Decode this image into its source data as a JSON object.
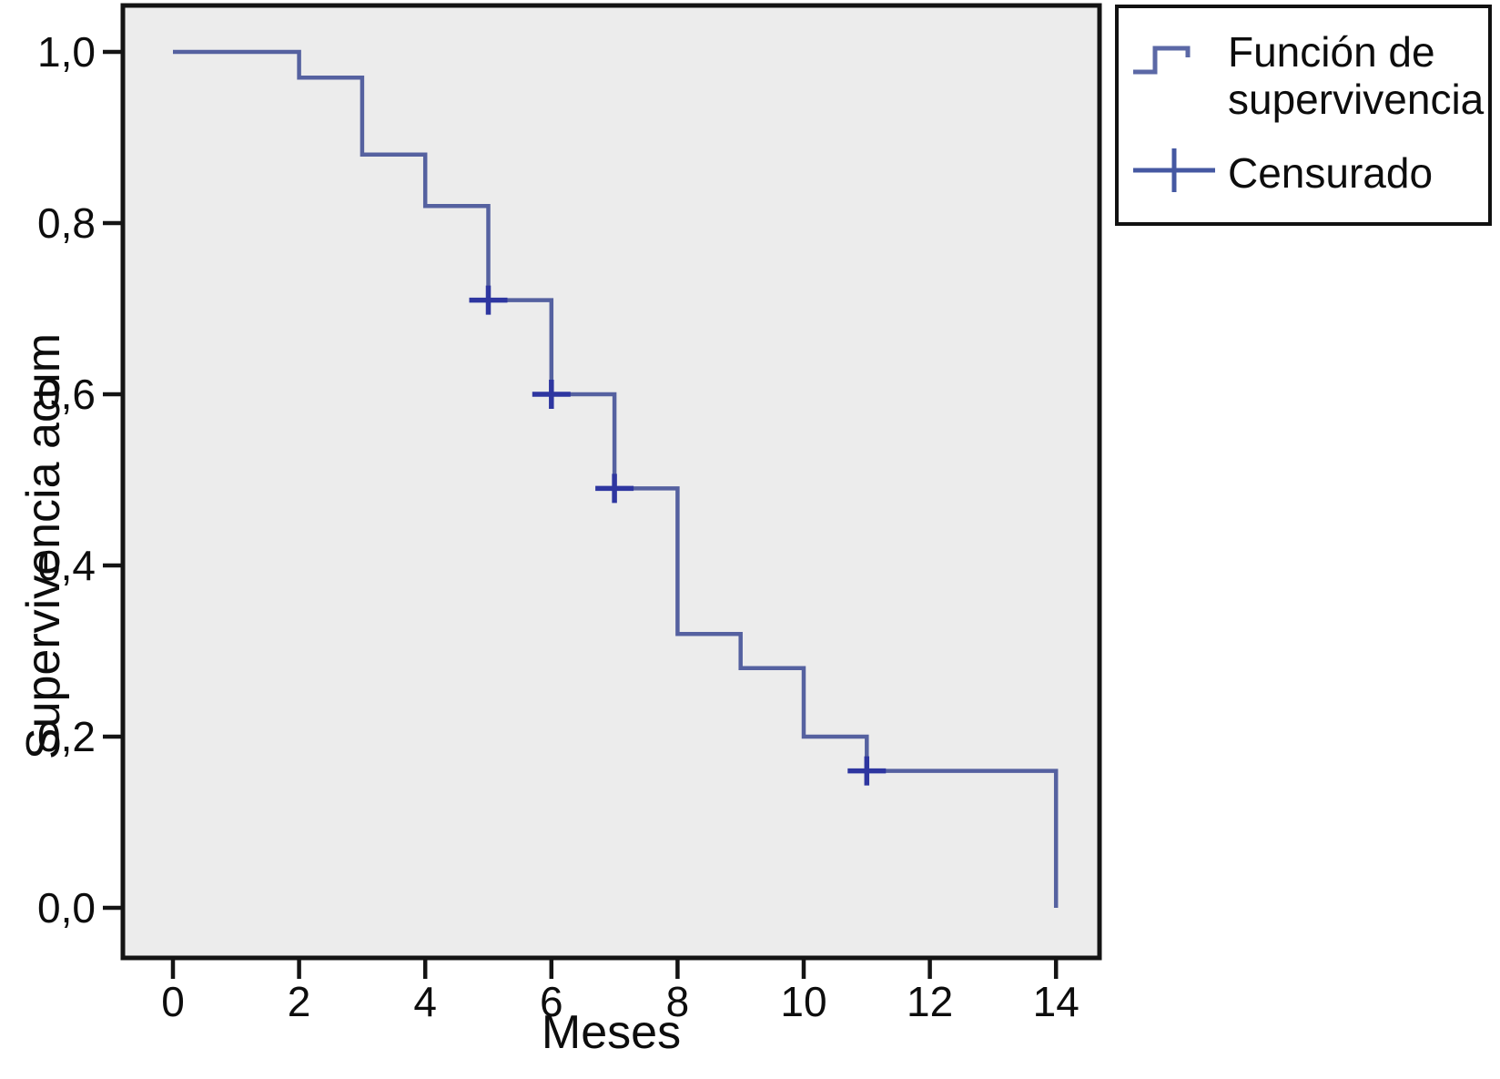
{
  "chart_data": {
    "type": "line",
    "subtype": "kaplan-meier-step",
    "title": "",
    "xlabel": "Meses",
    "ylabel": "Supervivencia acum",
    "xlim": [
      0,
      14
    ],
    "ylim": [
      0.0,
      1.0
    ],
    "grid": false,
    "plot_bg": "#ececec",
    "legend_position": "outside-top-right",
    "xticks": {
      "values": [
        0,
        2,
        4,
        6,
        8,
        10,
        12,
        14
      ],
      "labels": [
        "0",
        "2",
        "4",
        "6",
        "8",
        "10",
        "12",
        "14"
      ]
    },
    "yticks": {
      "values": [
        1.0,
        0.8,
        0.6,
        0.4,
        0.2,
        0.0
      ],
      "labels": [
        "1,0",
        "0,8",
        "0,6",
        "0,4",
        "0,2",
        "0,0"
      ]
    },
    "legend": [
      {
        "label": "Función de supervivencia",
        "marker": "step-line"
      },
      {
        "label": "Censurado",
        "marker": "plus"
      }
    ],
    "series": [
      {
        "name": "Función de supervivencia",
        "points": [
          [
            0,
            1.0
          ],
          [
            2,
            1.0
          ],
          [
            2,
            0.97
          ],
          [
            3,
            0.97
          ],
          [
            3,
            0.88
          ],
          [
            4,
            0.88
          ],
          [
            4,
            0.82
          ],
          [
            5,
            0.82
          ],
          [
            5,
            0.71
          ],
          [
            6,
            0.71
          ],
          [
            6,
            0.6
          ],
          [
            7,
            0.6
          ],
          [
            7,
            0.49
          ],
          [
            8,
            0.49
          ],
          [
            8,
            0.32
          ],
          [
            9,
            0.32
          ],
          [
            9,
            0.28
          ],
          [
            10,
            0.28
          ],
          [
            10,
            0.2
          ],
          [
            11,
            0.2
          ],
          [
            11,
            0.16
          ],
          [
            14,
            0.16
          ],
          [
            14,
            0.0
          ]
        ]
      }
    ],
    "censored_points": [
      [
        5,
        0.71
      ],
      [
        6,
        0.6
      ],
      [
        7,
        0.49
      ],
      [
        11,
        0.16
      ]
    ],
    "colors": {
      "line": "#5561a0",
      "censor": "#2e36a0",
      "frame": "#141414",
      "text": "#0d0d0d"
    }
  }
}
